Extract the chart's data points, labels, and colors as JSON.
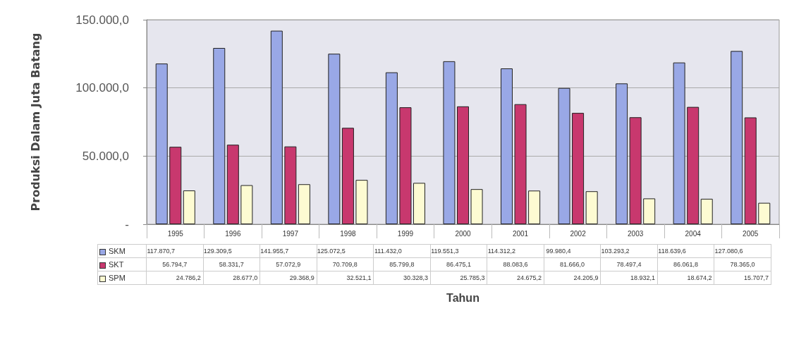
{
  "chart_data": {
    "type": "bar",
    "xlabel": "Tahun",
    "ylabel": "Produksi Dalam Juta Batang",
    "categories": [
      "1995",
      "1996",
      "1997",
      "1998",
      "1999",
      "2000",
      "2001",
      "2002",
      "2003",
      "2004",
      "2005"
    ],
    "series": [
      {
        "name": "SKM",
        "color": "#99a8e6",
        "values": [
          117870.7,
          129309.5,
          141955.7,
          125072.5,
          111432.0,
          119551.3,
          114312.2,
          99980.4,
          103293.2,
          118639.6,
          127080.6
        ],
        "value_labels": [
          "117.870,7",
          "129.309,5",
          "141.955,7",
          "125.072,5",
          "111.432,0",
          "119.551,3",
          "114.312,2",
          "99.980,4",
          "103.293,2",
          "118.639,6",
          "127.080,6"
        ]
      },
      {
        "name": "SKT",
        "color": "#c8386e",
        "values": [
          56794.7,
          58331.7,
          57072.9,
          70709.8,
          85799.8,
          86475.1,
          88083.6,
          81666.0,
          78497.4,
          86061.8,
          78365.0
        ],
        "value_labels": [
          "56.794,7",
          "58.331,7",
          "57.072,9",
          "70.709,8",
          "85.799,8",
          "86.475,1",
          "88.083,6",
          "81.666,0",
          "78.497,4",
          "86.061,8",
          "78.365,0"
        ]
      },
      {
        "name": "SPM",
        "color": "#fdfbd2",
        "values": [
          24786.2,
          28677.0,
          29368.9,
          32521.1,
          30328.3,
          25785.3,
          24675.2,
          24205.9,
          18932.1,
          18674.2,
          15707.7
        ],
        "value_labels": [
          "24.786,2",
          "28.677,0",
          "29.368,9",
          "32.521,1",
          "30.328,3",
          "25.785,3",
          "24.675,2",
          "24.205,9",
          "18.932,1",
          "18.674,2",
          "15.707,7"
        ]
      }
    ],
    "ylim": [
      0,
      150000
    ],
    "yticks": [
      {
        "value": 0,
        "label": "-"
      },
      {
        "value": 50000,
        "label": "50.000,0"
      },
      {
        "value": 100000,
        "label": "100.000,0"
      },
      {
        "value": 150000,
        "label": "150.000,0"
      }
    ],
    "grid": "y",
    "legend": "bottom left"
  }
}
